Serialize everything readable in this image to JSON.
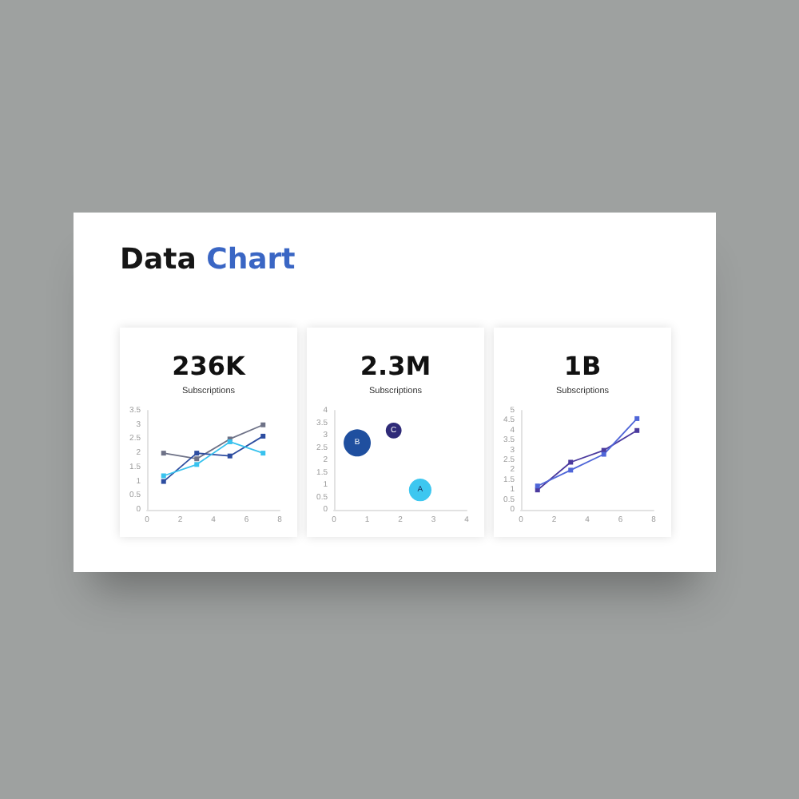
{
  "chart_data": [
    {
      "type": "other",
      "title": "Data Chart"
    },
    {
      "type": "line",
      "title": "236K",
      "subtitle": "Subscriptions",
      "x": [
        1,
        3,
        5,
        7
      ],
      "series": [
        {
          "color": "#6e7287",
          "values": [
            2,
            1.8,
            2.5,
            3
          ]
        },
        {
          "color": "#2d4da0",
          "values": [
            1,
            2,
            1.9,
            2.6
          ]
        },
        {
          "color": "#38c2ee",
          "values": [
            1.2,
            1.6,
            2.4,
            2
          ]
        }
      ],
      "xlim": [
        0,
        8
      ],
      "xticks": [
        0,
        2,
        4,
        6,
        8
      ],
      "ylim": [
        0,
        3.5
      ],
      "yticks": [
        0,
        0.5,
        1,
        1.5,
        2,
        2.5,
        3,
        3.5
      ],
      "marker": "square"
    },
    {
      "type": "bubble",
      "title": "2.3M",
      "subtitle": "Subscriptions",
      "series": [
        {
          "name": "B",
          "color": "#1f4f9f",
          "x": [
            0.7
          ],
          "values": [
            2.7
          ],
          "sizes": [
            1
          ]
        },
        {
          "name": "C",
          "color": "#2f2b78",
          "x": [
            1.8
          ],
          "values": [
            3.2
          ],
          "sizes": [
            0.34
          ]
        },
        {
          "name": "A",
          "color": "#3dc7f0",
          "x": [
            2.6
          ],
          "values": [
            0.8
          ],
          "sizes": [
            0.69
          ]
        }
      ],
      "xlim": [
        0,
        4
      ],
      "xticks": [
        0,
        1,
        2,
        3,
        4
      ],
      "ylim": [
        0,
        4
      ],
      "yticks": [
        0,
        0.5,
        1,
        1.5,
        2,
        2.5,
        3,
        3.5,
        4
      ]
    },
    {
      "type": "line",
      "title": "1B",
      "subtitle": "Subscriptions",
      "x": [
        1,
        3,
        5,
        7
      ],
      "series": [
        {
          "color": "#4b3a9e",
          "values": [
            1,
            2.4,
            3,
            4
          ]
        },
        {
          "color": "#4f66d8",
          "values": [
            1.2,
            2,
            2.8,
            4.6
          ]
        }
      ],
      "xlim": [
        0,
        8
      ],
      "xticks": [
        0,
        2,
        4,
        6,
        8
      ],
      "ylim": [
        0,
        5
      ],
      "yticks": [
        0,
        0.5,
        1,
        1.5,
        2,
        2.5,
        3,
        3.5,
        4,
        4.5,
        5
      ],
      "marker": "square"
    }
  ]
}
